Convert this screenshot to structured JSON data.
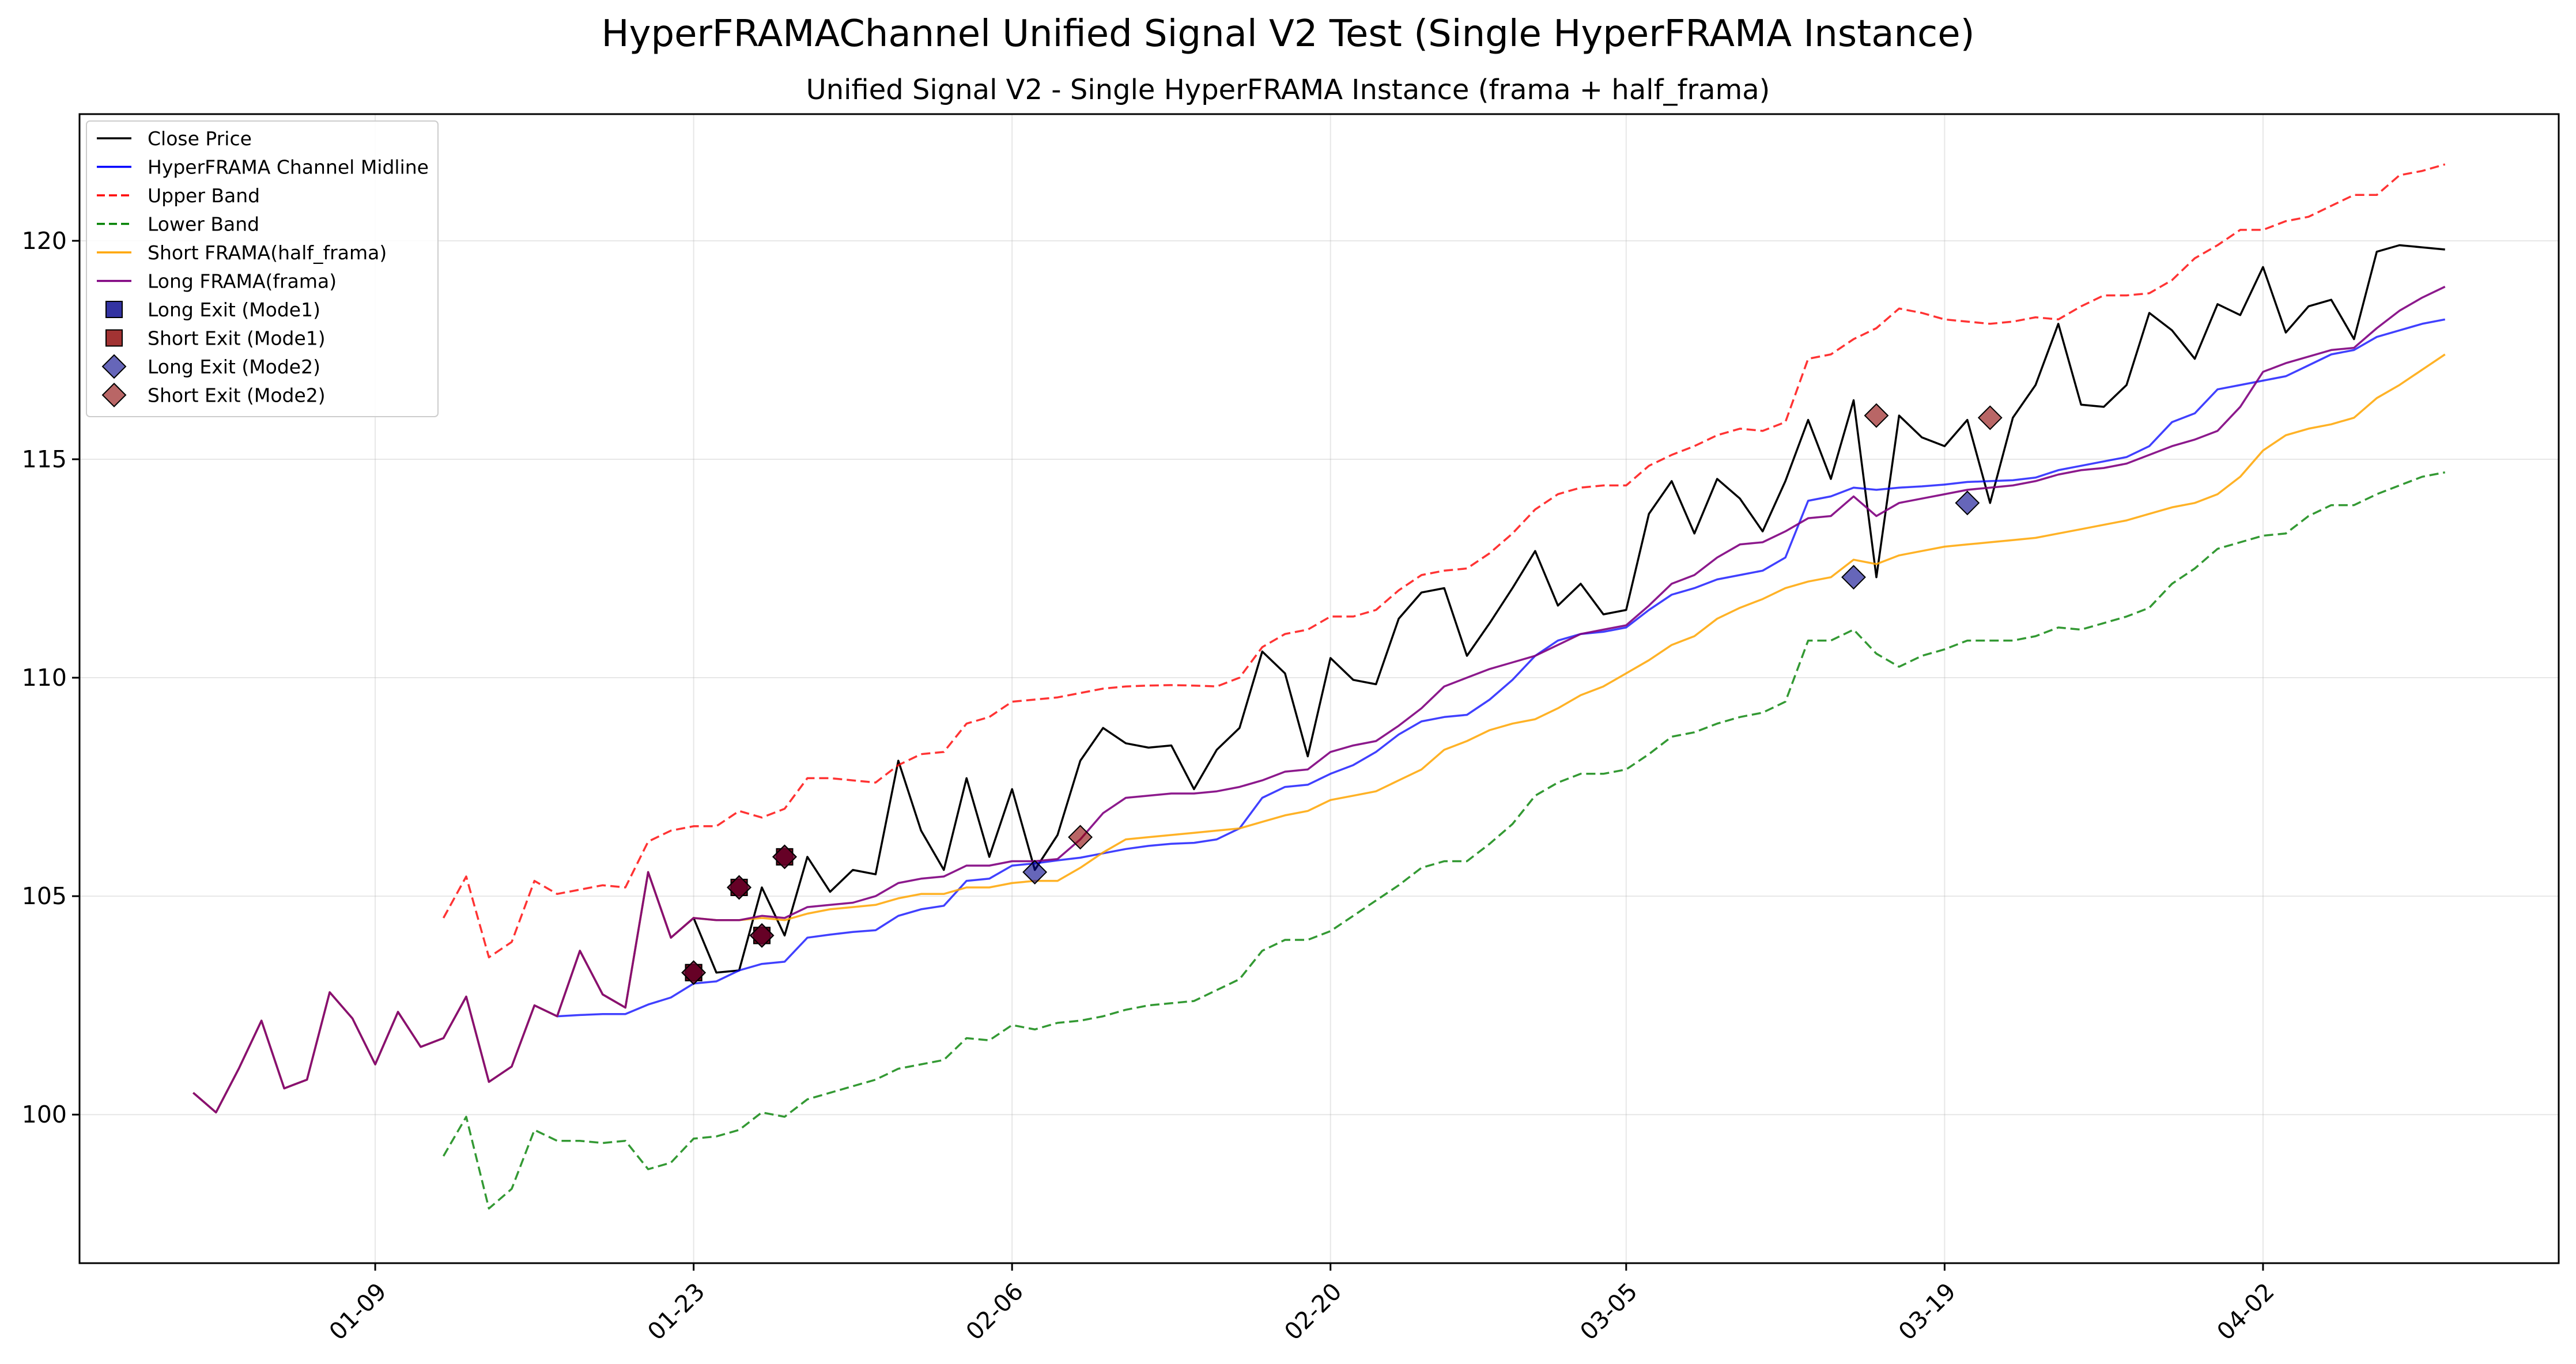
{
  "chart_data": {
    "type": "line",
    "suptitle": "HyperFRAMAChannel Unified Signal V2 Test (Single HyperFRAMA Instance)",
    "title": "Unified Signal V2 - Single HyperFRAMA Instance (frama + half_frama)",
    "xlabel": "",
    "ylabel": "",
    "x_start": "2025-01-01",
    "x_end": "2025-04-10",
    "xlim": [
      "2024-12-27",
      "2025-04-15"
    ],
    "ylim": [
      96.6,
      122.9
    ],
    "grid": true,
    "legend_position": "upper-left",
    "x_ticks": [
      "01-09",
      "01-23",
      "02-06",
      "02-20",
      "03-05",
      "03-19",
      "04-02"
    ],
    "y_ticks": [
      100,
      105,
      110,
      115,
      120
    ],
    "x_ticks_dates": [
      "2025-01-09",
      "2025-01-23",
      "2025-02-06",
      "2025-02-20",
      "2025-03-05",
      "2025-03-19",
      "2025-04-02"
    ],
    "series": [
      {
        "name": "Close Price",
        "color": "#000000",
        "dash": "solid",
        "values": [
          100.5,
          100.05,
          101.05,
          102.15,
          100.6,
          100.8,
          102.8,
          102.2,
          101.15,
          102.35,
          101.55,
          101.75,
          102.7,
          100.75,
          101.1,
          102.5,
          102.25,
          103.75,
          102.75,
          102.45,
          105.55,
          104.05,
          104.5,
          103.25,
          103.3,
          105.2,
          104.1,
          105.9,
          105.1,
          105.6,
          105.5,
          108.1,
          106.5,
          105.6,
          107.7,
          105.9,
          107.45,
          105.6,
          106.4,
          108.1,
          108.85,
          108.5,
          108.4,
          108.45,
          107.45,
          108.35,
          108.85,
          110.6,
          110.1,
          108.2,
          110.45,
          109.95,
          109.85,
          111.35,
          111.95,
          112.05,
          110.5,
          111.25,
          112.05,
          112.9,
          111.65,
          112.15,
          111.45,
          111.55,
          113.75,
          114.5,
          113.3,
          114.55,
          114.1,
          113.35,
          114.5,
          115.9,
          114.55,
          116.35,
          112.3,
          116.0,
          115.5,
          115.3,
          115.9,
          114.0,
          115.95,
          116.7,
          118.1,
          116.25,
          116.2,
          116.7,
          118.35,
          117.95,
          117.3,
          118.55,
          118.3,
          119.4,
          117.9,
          118.5,
          118.65,
          117.75,
          119.75,
          119.9,
          119.85,
          119.8
        ]
      },
      {
        "name": "HyperFRAMA Channel Midline",
        "color": "#0000ff",
        "dash": "solid",
        "values": [
          null,
          null,
          null,
          null,
          null,
          null,
          null,
          null,
          null,
          null,
          null,
          null,
          null,
          null,
          null,
          null,
          102.25,
          102.28,
          102.3,
          102.3,
          102.52,
          102.68,
          103.0,
          103.05,
          103.3,
          103.45,
          103.5,
          104.05,
          104.12,
          104.18,
          104.22,
          104.55,
          104.7,
          104.78,
          105.35,
          105.4,
          105.7,
          105.75,
          105.82,
          105.88,
          105.98,
          106.08,
          106.15,
          106.2,
          106.22,
          106.3,
          106.55,
          107.25,
          107.5,
          107.55,
          107.8,
          108.0,
          108.3,
          108.7,
          109.0,
          109.1,
          109.15,
          109.5,
          109.95,
          110.5,
          110.85,
          111.0,
          111.05,
          111.15,
          111.55,
          111.9,
          112.05,
          112.25,
          112.35,
          112.45,
          112.75,
          114.05,
          114.15,
          114.35,
          114.3,
          114.35,
          114.38,
          114.42,
          114.48,
          114.5,
          114.52,
          114.58,
          114.75,
          114.85,
          114.95,
          115.05,
          115.3,
          115.85,
          116.05,
          116.6,
          116.7,
          116.8,
          116.9,
          117.15,
          117.4,
          117.5,
          117.8,
          117.95,
          118.1,
          118.2
        ]
      },
      {
        "name": "Upper Band",
        "color": "#ff0000",
        "dash": "dashed",
        "values": [
          null,
          null,
          null,
          null,
          null,
          null,
          null,
          null,
          null,
          null,
          null,
          104.5,
          105.45,
          103.6,
          103.95,
          105.35,
          105.05,
          105.15,
          105.25,
          105.2,
          106.25,
          106.5,
          106.6,
          106.6,
          106.95,
          106.8,
          107.0,
          107.7,
          107.7,
          107.65,
          107.6,
          108.0,
          108.25,
          108.3,
          108.95,
          109.1,
          109.45,
          109.5,
          109.55,
          109.65,
          109.75,
          109.8,
          109.82,
          109.83,
          109.82,
          109.8,
          110.0,
          110.7,
          111.0,
          111.1,
          111.4,
          111.4,
          111.55,
          112.0,
          112.35,
          112.45,
          112.5,
          112.85,
          113.3,
          113.85,
          114.2,
          114.35,
          114.4,
          114.4,
          114.85,
          115.1,
          115.3,
          115.55,
          115.7,
          115.65,
          115.85,
          117.3,
          117.4,
          117.75,
          118.0,
          118.45,
          118.35,
          118.2,
          118.15,
          118.1,
          118.15,
          118.25,
          118.2,
          118.5,
          118.75,
          118.75,
          118.8,
          119.1,
          119.6,
          119.9,
          120.25,
          120.25,
          120.45,
          120.55,
          120.8,
          121.05,
          121.05,
          121.5,
          121.6,
          121.75
        ]
      },
      {
        "name": "Lower Band",
        "color": "#008000",
        "dash": "dashed",
        "values": [
          null,
          null,
          null,
          null,
          null,
          null,
          null,
          null,
          null,
          null,
          null,
          99.05,
          99.95,
          97.85,
          98.3,
          99.65,
          99.4,
          99.4,
          99.35,
          99.4,
          98.75,
          98.9,
          99.45,
          99.5,
          99.65,
          100.05,
          99.95,
          100.35,
          100.5,
          100.65,
          100.8,
          101.05,
          101.15,
          101.25,
          101.75,
          101.7,
          102.05,
          101.95,
          102.1,
          102.15,
          102.25,
          102.4,
          102.5,
          102.55,
          102.6,
          102.85,
          103.1,
          103.75,
          104.0,
          104.0,
          104.2,
          104.55,
          104.9,
          105.25,
          105.65,
          105.8,
          105.8,
          106.2,
          106.65,
          107.3,
          107.6,
          107.8,
          107.8,
          107.9,
          108.25,
          108.65,
          108.75,
          108.95,
          109.1,
          109.2,
          109.45,
          110.85,
          110.85,
          111.1,
          110.55,
          110.25,
          110.5,
          110.65,
          110.85,
          110.85,
          110.85,
          110.95,
          111.15,
          111.1,
          111.25,
          111.4,
          111.6,
          112.15,
          112.5,
          112.95,
          113.1,
          113.25,
          113.3,
          113.7,
          113.95,
          113.95,
          114.2,
          114.4,
          114.6,
          114.7
        ]
      },
      {
        "name": "Short FRAMA(half_frama)",
        "color": "#ffa500",
        "dash": "solid",
        "values": [
          100.5,
          100.05,
          101.05,
          102.15,
          100.6,
          100.8,
          102.8,
          102.2,
          101.15,
          102.35,
          101.55,
          101.75,
          102.7,
          100.75,
          101.1,
          102.5,
          102.25,
          103.75,
          102.75,
          102.45,
          105.55,
          104.05,
          104.5,
          104.45,
          104.45,
          104.5,
          104.45,
          104.6,
          104.7,
          104.75,
          104.8,
          104.95,
          105.05,
          105.05,
          105.2,
          105.2,
          105.3,
          105.35,
          105.35,
          105.65,
          106.0,
          106.3,
          106.35,
          106.4,
          106.45,
          106.5,
          106.55,
          106.7,
          106.85,
          106.95,
          107.2,
          107.3,
          107.4,
          107.65,
          107.9,
          108.35,
          108.55,
          108.8,
          108.95,
          109.05,
          109.3,
          109.6,
          109.8,
          110.1,
          110.4,
          110.75,
          110.95,
          111.35,
          111.6,
          111.8,
          112.05,
          112.2,
          112.3,
          112.7,
          112.6,
          112.8,
          112.9,
          113.0,
          113.05,
          113.1,
          113.15,
          113.2,
          113.3,
          113.4,
          113.5,
          113.6,
          113.75,
          113.9,
          114.0,
          114.2,
          114.6,
          115.2,
          115.55,
          115.7,
          115.8,
          115.95,
          116.4,
          116.7,
          117.05,
          117.4
        ]
      },
      {
        "name": "Long FRAMA(frama)",
        "color": "#800080",
        "dash": "solid",
        "values": [
          100.5,
          100.05,
          101.05,
          102.15,
          100.6,
          100.8,
          102.8,
          102.2,
          101.15,
          102.35,
          101.55,
          101.75,
          102.7,
          100.75,
          101.1,
          102.5,
          102.25,
          103.75,
          102.75,
          102.45,
          105.55,
          104.05,
          104.5,
          104.45,
          104.45,
          104.55,
          104.5,
          104.75,
          104.8,
          104.85,
          105.0,
          105.3,
          105.4,
          105.45,
          105.7,
          105.7,
          105.8,
          105.8,
          105.85,
          106.3,
          106.9,
          107.25,
          107.3,
          107.35,
          107.35,
          107.4,
          107.5,
          107.65,
          107.85,
          107.9,
          108.3,
          108.45,
          108.55,
          108.9,
          109.3,
          109.8,
          110.0,
          110.2,
          110.35,
          110.5,
          110.75,
          111.0,
          111.1,
          111.2,
          111.65,
          112.15,
          112.35,
          112.75,
          113.05,
          113.1,
          113.35,
          113.65,
          113.7,
          114.15,
          113.7,
          114.0,
          114.1,
          114.2,
          114.3,
          114.35,
          114.4,
          114.5,
          114.65,
          114.75,
          114.8,
          114.9,
          115.1,
          115.3,
          115.45,
          115.65,
          116.2,
          117.0,
          117.2,
          117.35,
          117.5,
          117.55,
          118.0,
          118.4,
          118.7,
          118.95
        ]
      }
    ],
    "markers": [
      {
        "name": "Long Exit (Mode1)",
        "shape": "square",
        "color": "#00008b",
        "points": [
          {
            "x": "2025-01-23",
            "y": 103.25
          },
          {
            "x": "2025-01-25",
            "y": 105.2
          },
          {
            "x": "2025-01-26",
            "y": 104.1
          },
          {
            "x": "2025-01-27",
            "y": 105.9
          }
        ]
      },
      {
        "name": "Short Exit (Mode1)",
        "shape": "square",
        "color": "#8b0000",
        "points": [
          {
            "x": "2025-01-23",
            "y": 103.25
          },
          {
            "x": "2025-01-25",
            "y": 105.2
          },
          {
            "x": "2025-01-26",
            "y": 104.1
          },
          {
            "x": "2025-01-27",
            "y": 105.9
          }
        ]
      },
      {
        "name": "Long Exit (Mode2)",
        "shape": "diamond",
        "color": "#00008b",
        "points": [
          {
            "x": "2025-01-23",
            "y": 103.25
          },
          {
            "x": "2025-01-25",
            "y": 105.2
          },
          {
            "x": "2025-01-26",
            "y": 104.1
          },
          {
            "x": "2025-01-27",
            "y": 105.9
          },
          {
            "x": "2025-02-07",
            "y": 105.55
          },
          {
            "x": "2025-03-15",
            "y": 112.3
          },
          {
            "x": "2025-03-20",
            "y": 114.0
          }
        ]
      },
      {
        "name": "Short Exit (Mode2)",
        "shape": "diamond",
        "color": "#8b0000",
        "points": [
          {
            "x": "2025-01-23",
            "y": 103.25
          },
          {
            "x": "2025-01-25",
            "y": 105.2
          },
          {
            "x": "2025-01-26",
            "y": 104.1
          },
          {
            "x": "2025-01-27",
            "y": 105.9
          },
          {
            "x": "2025-02-09",
            "y": 106.35
          },
          {
            "x": "2025-03-16",
            "y": 116.0
          },
          {
            "x": "2025-03-21",
            "y": 115.95
          }
        ]
      }
    ],
    "legend": [
      {
        "label": "Close Price",
        "kind": "line",
        "color": "#000000",
        "dash": "solid"
      },
      {
        "label": "HyperFRAMA Channel Midline",
        "kind": "line",
        "color": "#0000ff",
        "dash": "solid"
      },
      {
        "label": "Upper Band",
        "kind": "line",
        "color": "#ff0000",
        "dash": "dashed"
      },
      {
        "label": "Lower Band",
        "kind": "line",
        "color": "#008000",
        "dash": "dashed"
      },
      {
        "label": "Short FRAMA(half_frama)",
        "kind": "line",
        "color": "#ffa500",
        "dash": "solid"
      },
      {
        "label": "Long FRAMA(frama)",
        "kind": "line",
        "color": "#800080",
        "dash": "solid"
      },
      {
        "label": "Long Exit (Mode1)",
        "kind": "square",
        "color": "#00008b"
      },
      {
        "label": "Short Exit (Mode1)",
        "kind": "square",
        "color": "#8b0000"
      },
      {
        "label": "Long Exit (Mode2)",
        "kind": "diamond",
        "color": "#00008b"
      },
      {
        "label": "Short Exit (Mode2)",
        "kind": "diamond",
        "color": "#8b0000"
      }
    ]
  }
}
